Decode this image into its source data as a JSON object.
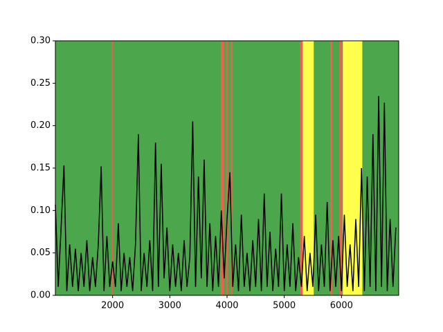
{
  "chart_data": {
    "type": "line",
    "xlim": [
      1000,
      7000
    ],
    "xticks": [
      2000,
      3000,
      4000,
      5000,
      6000
    ],
    "ylim": [
      0,
      0.3
    ],
    "yticks": [
      {
        "value": 0,
        "label": "0.00"
      },
      {
        "value": 0.05,
        "label": "0.05"
      },
      {
        "value": 0.1,
        "label": "0.10"
      },
      {
        "value": 0.15,
        "label": "0.15"
      },
      {
        "value": 0.2,
        "label": "0.20"
      },
      {
        "value": 0.25,
        "label": "0.25"
      },
      {
        "value": 0.3,
        "label": "0.30"
      }
    ],
    "background_color": "#4ca64c",
    "spans": [
      {
        "x": [
          1990,
          2005
        ],
        "color": "#f0604c"
      },
      {
        "x": [
          3890,
          3945
        ],
        "color": "#f0604c"
      },
      {
        "x": [
          3985,
          4015
        ],
        "color": "#f0604c"
      },
      {
        "x": [
          4065,
          4095
        ],
        "color": "#f0604c"
      },
      {
        "x": [
          5273,
          5321
        ],
        "color": "#f0604c"
      },
      {
        "x": [
          5321,
          5515
        ],
        "color": "#ffff4c"
      },
      {
        "x": [
          5806,
          5842
        ],
        "color": "#f0604c"
      },
      {
        "x": [
          5964,
          6012
        ],
        "color": "#f0604c"
      },
      {
        "x": [
          6024,
          6364
        ],
        "color": "#ffff4c"
      }
    ],
    "series": [
      {
        "color": "#000000",
        "x": [
          1000,
          1050,
          1100,
          1150,
          1200,
          1250,
          1300,
          1350,
          1400,
          1450,
          1500,
          1550,
          1600,
          1650,
          1700,
          1750,
          1800,
          1850,
          1900,
          1950,
          2000,
          2050,
          2100,
          2150,
          2200,
          2250,
          2300,
          2350,
          2400,
          2450,
          2500,
          2550,
          2600,
          2650,
          2700,
          2750,
          2800,
          2850,
          2900,
          2950,
          3000,
          3050,
          3100,
          3150,
          3200,
          3250,
          3300,
          3350,
          3400,
          3450,
          3500,
          3550,
          3600,
          3650,
          3700,
          3750,
          3800,
          3850,
          3900,
          3950,
          4000,
          4050,
          4100,
          4150,
          4200,
          4250,
          4300,
          4350,
          4400,
          4450,
          4500,
          4550,
          4600,
          4650,
          4700,
          4750,
          4800,
          4850,
          4900,
          4950,
          5000,
          5050,
          5100,
          5150,
          5200,
          5250,
          5300,
          5350,
          5400,
          5450,
          5500,
          5550,
          5600,
          5650,
          5700,
          5750,
          5800,
          5850,
          5900,
          5950,
          6000,
          6050,
          6100,
          6150,
          6200,
          6250,
          6300,
          6350,
          6400,
          6450,
          6500,
          6550,
          6600,
          6650,
          6700,
          6750,
          6800,
          6850,
          6900,
          6950
        ],
        "values": [
          0.107,
          0.01,
          0.08,
          0.153,
          0.005,
          0.06,
          0.01,
          0.055,
          0.005,
          0.05,
          0.01,
          0.065,
          0.005,
          0.045,
          0.01,
          0.06,
          0.152,
          0.005,
          0.07,
          0.01,
          0.04,
          0.01,
          0.085,
          0.005,
          0.05,
          0.01,
          0.045,
          0.005,
          0.06,
          0.19,
          0.005,
          0.05,
          0.01,
          0.065,
          0.005,
          0.18,
          0.01,
          0.155,
          0.02,
          0.08,
          0.005,
          0.06,
          0.01,
          0.05,
          0.005,
          0.065,
          0.01,
          0.045,
          0.205,
          0.01,
          0.14,
          0.02,
          0.16,
          0.01,
          0.085,
          0.005,
          0.07,
          0.01,
          0.1,
          0.02,
          0.09,
          0.145,
          0.01,
          0.06,
          0.005,
          0.095,
          0.01,
          0.05,
          0.005,
          0.065,
          0.01,
          0.09,
          0.005,
          0.12,
          0.01,
          0.075,
          0.005,
          0.055,
          0.01,
          0.12,
          0.005,
          0.06,
          0.01,
          0.085,
          0.005,
          0.045,
          0.01,
          0.07,
          0.005,
          0.05,
          0.01,
          0.095,
          0.005,
          0.06,
          0.01,
          0.11,
          0.005,
          0.065,
          0.01,
          0.07,
          0.005,
          0.095,
          0.01,
          0.06,
          0.005,
          0.09,
          0.01,
          0.15,
          0.005,
          0.14,
          0.01,
          0.19,
          0.005,
          0.235,
          0.01,
          0.227,
          0.005,
          0.09,
          0.01,
          0.08
        ]
      }
    ]
  }
}
